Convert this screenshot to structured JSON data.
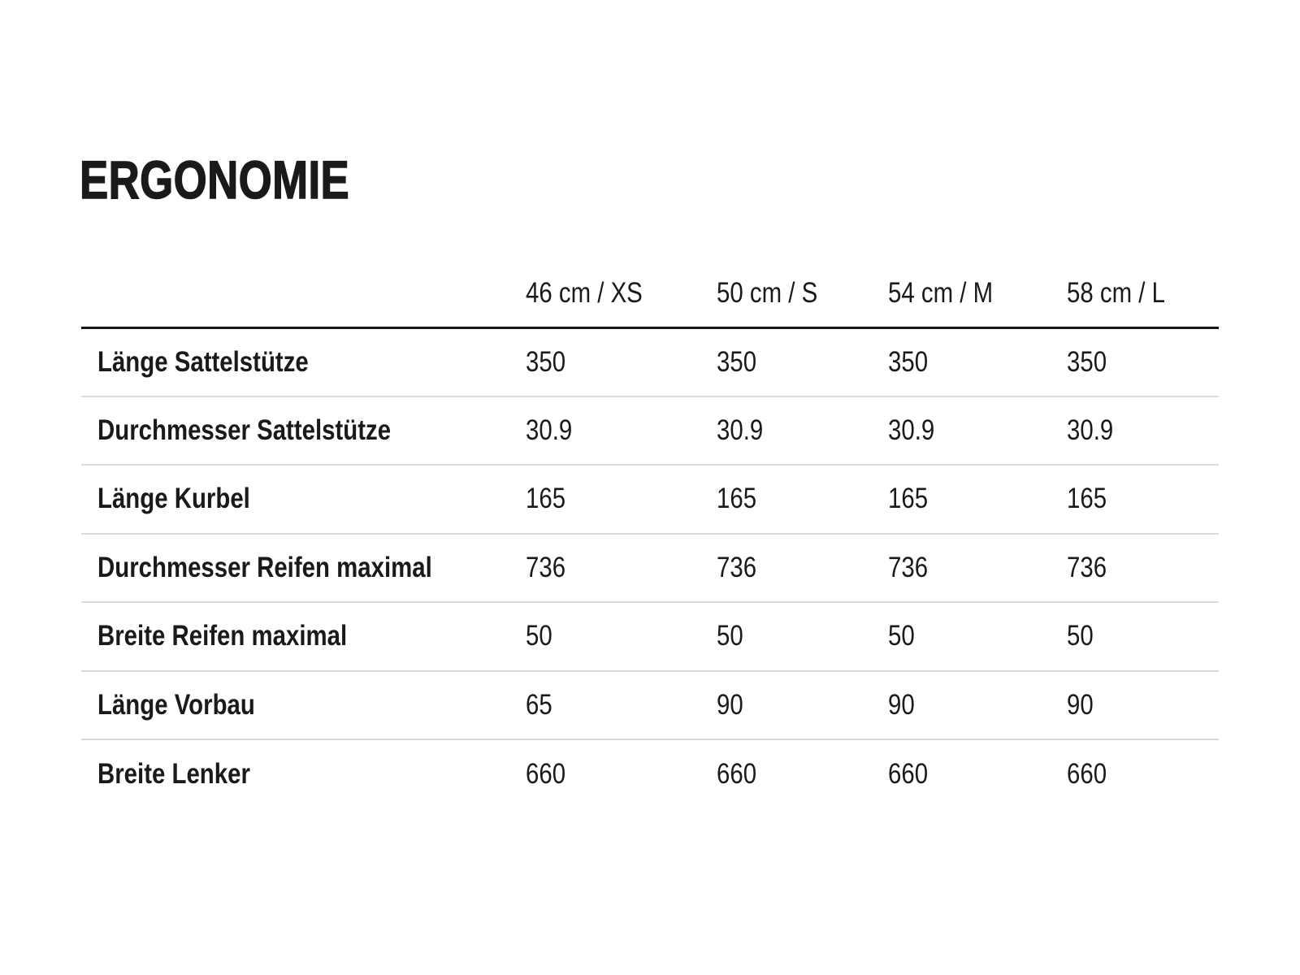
{
  "page": {
    "title": "ERGONOMIE"
  },
  "table": {
    "size_columns": [
      "46 cm / XS",
      "50 cm / S",
      "54 cm / M",
      "58 cm / L"
    ],
    "rows": [
      {
        "label": "Länge Sattelstütze",
        "values": [
          "350",
          "350",
          "350",
          "350"
        ]
      },
      {
        "label": "Durchmesser Sattelstütze",
        "values": [
          "30.9",
          "30.9",
          "30.9",
          "30.9"
        ]
      },
      {
        "label": "Länge Kurbel",
        "values": [
          "165",
          "165",
          "165",
          "165"
        ]
      },
      {
        "label": "Durchmesser Reifen maximal",
        "values": [
          "736",
          "736",
          "736",
          "736"
        ]
      },
      {
        "label": "Breite Reifen maximal",
        "values": [
          "50",
          "50",
          "50",
          "50"
        ]
      },
      {
        "label": "Länge Vorbau",
        "values": [
          "65",
          "90",
          "90",
          "90"
        ]
      },
      {
        "label": "Breite Lenker",
        "values": [
          "660",
          "660",
          "660",
          "660"
        ]
      }
    ]
  },
  "colors": {
    "text": "#1a1a1a",
    "heavy_rule": "#161616",
    "light_rule": "#d8dadb",
    "background": "#ffffff"
  }
}
